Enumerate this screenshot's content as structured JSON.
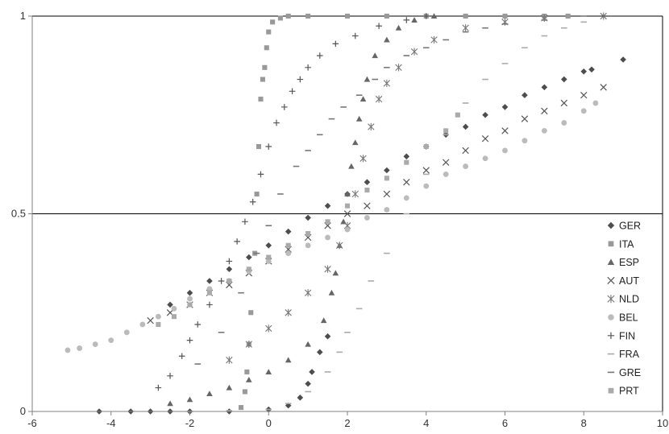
{
  "chart_data": {
    "type": "scatter",
    "title": "",
    "xlabel": "",
    "ylabel": "",
    "xlim": [
      -6,
      10
    ],
    "ylim": [
      0,
      1
    ],
    "x_ticks": [
      -6,
      -4,
      -2,
      0,
      2,
      4,
      6,
      8,
      10
    ],
    "x_tick_labels": [
      "-6",
      "-4",
      "-2",
      "0",
      "2",
      "4",
      "6",
      "8",
      "10"
    ],
    "y_ticks": [
      0,
      0.5,
      1
    ],
    "y_tick_labels": [
      "0",
      "0.5",
      "1"
    ],
    "horizontal_reference_lines": [
      0.5,
      1
    ],
    "legend_position": "right",
    "series": [
      {
        "name": "GER",
        "marker": "diamond",
        "color": "#4d4d4d",
        "points": [
          [
            -4.3,
            0.0
          ],
          [
            -3.5,
            0.0
          ],
          [
            -3.0,
            0.0
          ],
          [
            -2.5,
            0.0
          ],
          [
            -2.0,
            0.0
          ],
          [
            -1.0,
            0.0
          ],
          [
            0.0,
            0.005
          ],
          [
            0.5,
            0.015
          ],
          [
            0.8,
            0.035
          ],
          [
            1.0,
            0.07
          ],
          [
            1.1,
            0.1
          ],
          [
            1.3,
            0.15
          ],
          [
            1.5,
            0.19
          ],
          [
            -2.5,
            0.27
          ],
          [
            -2.0,
            0.3
          ],
          [
            -1.5,
            0.33
          ],
          [
            -1.0,
            0.36
          ],
          [
            -0.5,
            0.39
          ],
          [
            0.0,
            0.42
          ],
          [
            0.5,
            0.455
          ],
          [
            1.0,
            0.49
          ],
          [
            1.5,
            0.52
          ],
          [
            2.0,
            0.55
          ],
          [
            2.5,
            0.58
          ],
          [
            3.0,
            0.61
          ],
          [
            3.5,
            0.645
          ],
          [
            4.0,
            0.67
          ],
          [
            4.5,
            0.7
          ],
          [
            5.0,
            0.72
          ],
          [
            5.5,
            0.75
          ],
          [
            6.0,
            0.77
          ],
          [
            6.5,
            0.8
          ],
          [
            7.0,
            0.82
          ],
          [
            7.5,
            0.84
          ],
          [
            8.0,
            0.86
          ],
          [
            8.2,
            0.865
          ],
          [
            9.0,
            0.89
          ]
        ]
      },
      {
        "name": "ITA",
        "marker": "square",
        "color": "#999999",
        "points": [
          [
            -0.7,
            0.01
          ],
          [
            -0.6,
            0.05
          ],
          [
            -0.55,
            0.1
          ],
          [
            -0.5,
            0.17
          ],
          [
            -0.45,
            0.25
          ],
          [
            -0.35,
            0.4
          ],
          [
            -0.3,
            0.55
          ],
          [
            -0.25,
            0.67
          ],
          [
            -0.2,
            0.79
          ],
          [
            -0.15,
            0.84
          ],
          [
            -0.1,
            0.87
          ],
          [
            -0.05,
            0.92
          ],
          [
            0.0,
            0.96
          ],
          [
            0.1,
            0.985
          ],
          [
            0.3,
            0.995
          ],
          [
            0.5,
            1.0
          ],
          [
            1.0,
            1.0
          ],
          [
            2.0,
            1.0
          ],
          [
            3.0,
            1.0
          ],
          [
            4.0,
            1.0
          ],
          [
            5.0,
            1.0
          ],
          [
            6.0,
            1.0
          ],
          [
            7.0,
            1.0
          ],
          [
            7.6,
            1.0
          ]
        ]
      },
      {
        "name": "ESP",
        "marker": "triangle",
        "color": "#666666",
        "points": [
          [
            -2.5,
            0.02
          ],
          [
            -2.0,
            0.03
          ],
          [
            -1.5,
            0.045
          ],
          [
            -1.0,
            0.06
          ],
          [
            -0.5,
            0.08
          ],
          [
            0.0,
            0.1
          ],
          [
            0.5,
            0.13
          ],
          [
            1.0,
            0.17
          ],
          [
            1.4,
            0.23
          ],
          [
            1.6,
            0.3
          ],
          [
            1.7,
            0.35
          ],
          [
            1.8,
            0.42
          ],
          [
            1.9,
            0.48
          ],
          [
            2.0,
            0.55
          ],
          [
            2.1,
            0.62
          ],
          [
            2.2,
            0.68
          ],
          [
            2.3,
            0.74
          ],
          [
            2.4,
            0.79
          ],
          [
            2.5,
            0.84
          ],
          [
            2.7,
            0.9
          ],
          [
            3.0,
            0.94
          ],
          [
            3.3,
            0.97
          ],
          [
            3.7,
            0.99
          ],
          [
            4.2,
            1.0
          ]
        ]
      },
      {
        "name": "AUT",
        "marker": "x",
        "color": "#555555",
        "points": [
          [
            -3.0,
            0.23
          ],
          [
            -2.5,
            0.25
          ],
          [
            -2.0,
            0.27
          ],
          [
            -1.5,
            0.3
          ],
          [
            -1.0,
            0.32
          ],
          [
            -0.5,
            0.35
          ],
          [
            0.0,
            0.38
          ],
          [
            0.5,
            0.41
          ],
          [
            1.0,
            0.44
          ],
          [
            1.5,
            0.47
          ],
          [
            2.0,
            0.5
          ],
          [
            2.5,
            0.52
          ],
          [
            3.0,
            0.55
          ],
          [
            3.5,
            0.58
          ],
          [
            4.0,
            0.61
          ],
          [
            4.5,
            0.63
          ],
          [
            5.0,
            0.66
          ],
          [
            5.5,
            0.69
          ],
          [
            6.0,
            0.71
          ],
          [
            6.5,
            0.74
          ],
          [
            7.0,
            0.76
          ],
          [
            7.5,
            0.78
          ],
          [
            8.0,
            0.8
          ],
          [
            8.5,
            0.82
          ]
        ]
      },
      {
        "name": "NLD",
        "marker": "asterisk",
        "color": "#777777",
        "points": [
          [
            -1.0,
            0.13
          ],
          [
            -0.5,
            0.17
          ],
          [
            0.0,
            0.21
          ],
          [
            0.5,
            0.25
          ],
          [
            1.0,
            0.3
          ],
          [
            1.5,
            0.36
          ],
          [
            1.8,
            0.42
          ],
          [
            2.0,
            0.47
          ],
          [
            2.2,
            0.55
          ],
          [
            2.4,
            0.64
          ],
          [
            2.6,
            0.72
          ],
          [
            2.8,
            0.79
          ],
          [
            3.0,
            0.83
          ],
          [
            3.3,
            0.87
          ],
          [
            3.7,
            0.91
          ],
          [
            4.2,
            0.94
          ],
          [
            5.0,
            0.97
          ],
          [
            6.0,
            0.985
          ],
          [
            7.0,
            0.995
          ],
          [
            8.5,
            1.0
          ]
        ]
      },
      {
        "name": "BEL",
        "marker": "circle",
        "color": "#bbbbbb",
        "points": [
          [
            -5.1,
            0.155
          ],
          [
            -4.8,
            0.16
          ],
          [
            -4.4,
            0.17
          ],
          [
            -4.0,
            0.18
          ],
          [
            -3.6,
            0.2
          ],
          [
            -3.2,
            0.22
          ],
          [
            -2.8,
            0.24
          ],
          [
            -2.4,
            0.26
          ],
          [
            -2.0,
            0.285
          ],
          [
            -1.5,
            0.31
          ],
          [
            -1.0,
            0.33
          ],
          [
            -0.5,
            0.355
          ],
          [
            0.0,
            0.38
          ],
          [
            0.5,
            0.4
          ],
          [
            1.0,
            0.42
          ],
          [
            1.5,
            0.44
          ],
          [
            2.0,
            0.46
          ],
          [
            2.5,
            0.49
          ],
          [
            3.0,
            0.51
          ],
          [
            3.5,
            0.54
          ],
          [
            4.0,
            0.57
          ],
          [
            4.5,
            0.6
          ],
          [
            5.0,
            0.62
          ],
          [
            5.5,
            0.64
          ],
          [
            6.0,
            0.66
          ],
          [
            6.5,
            0.685
          ],
          [
            7.0,
            0.71
          ],
          [
            7.5,
            0.73
          ],
          [
            8.0,
            0.76
          ],
          [
            8.3,
            0.78
          ]
        ]
      },
      {
        "name": "FIN",
        "marker": "plus",
        "color": "#555555",
        "points": [
          [
            -2.8,
            0.06
          ],
          [
            -2.5,
            0.09
          ],
          [
            -2.2,
            0.14
          ],
          [
            -2.0,
            0.18
          ],
          [
            -1.8,
            0.22
          ],
          [
            -1.5,
            0.27
          ],
          [
            -1.2,
            0.33
          ],
          [
            -1.0,
            0.38
          ],
          [
            -0.8,
            0.43
          ],
          [
            -0.6,
            0.48
          ],
          [
            -0.4,
            0.53
          ],
          [
            -0.2,
            0.6
          ],
          [
            0.0,
            0.67
          ],
          [
            0.2,
            0.73
          ],
          [
            0.4,
            0.77
          ],
          [
            0.6,
            0.81
          ],
          [
            0.8,
            0.84
          ],
          [
            1.0,
            0.87
          ],
          [
            1.3,
            0.9
          ],
          [
            1.7,
            0.93
          ],
          [
            2.2,
            0.95
          ],
          [
            2.8,
            0.975
          ],
          [
            3.5,
            0.99
          ],
          [
            4.0,
            1.0
          ]
        ]
      },
      {
        "name": "FRA",
        "marker": "dash",
        "color": "#aaaaaa",
        "points": [
          [
            -2.0,
            0.0
          ],
          [
            -1.0,
            0.002
          ],
          [
            0.0,
            0.005
          ],
          [
            0.5,
            0.02
          ],
          [
            1.0,
            0.05
          ],
          [
            1.5,
            0.1
          ],
          [
            1.8,
            0.15
          ],
          [
            2.0,
            0.2
          ],
          [
            2.3,
            0.26
          ],
          [
            2.6,
            0.33
          ],
          [
            3.0,
            0.4
          ],
          [
            3.5,
            0.5
          ],
          [
            4.0,
            0.6
          ],
          [
            4.5,
            0.7
          ],
          [
            5.0,
            0.78
          ],
          [
            5.5,
            0.84
          ],
          [
            6.0,
            0.88
          ],
          [
            6.5,
            0.92
          ],
          [
            7.0,
            0.95
          ],
          [
            7.5,
            0.97
          ],
          [
            8.0,
            0.985
          ]
        ]
      },
      {
        "name": "GRE",
        "marker": "dash",
        "color": "#777777",
        "points": [
          [
            -1.8,
            0.12
          ],
          [
            -1.2,
            0.2
          ],
          [
            -0.7,
            0.3
          ],
          [
            -0.3,
            0.4
          ],
          [
            0.0,
            0.47
          ],
          [
            0.3,
            0.55
          ],
          [
            0.7,
            0.62
          ],
          [
            1.0,
            0.66
          ],
          [
            1.3,
            0.7
          ],
          [
            1.6,
            0.74
          ],
          [
            1.9,
            0.77
          ],
          [
            2.3,
            0.8
          ],
          [
            2.7,
            0.84
          ],
          [
            3.0,
            0.87
          ],
          [
            3.5,
            0.9
          ],
          [
            4.0,
            0.92
          ],
          [
            4.5,
            0.94
          ],
          [
            5.0,
            0.96
          ],
          [
            5.5,
            0.97
          ],
          [
            6.0,
            0.98
          ],
          [
            7.0,
            0.99
          ],
          [
            8.0,
            1.0
          ]
        ]
      },
      {
        "name": "PRT",
        "marker": "square",
        "color": "#aaaaaa",
        "points": [
          [
            -2.8,
            0.22
          ],
          [
            -2.4,
            0.24
          ],
          [
            -2.0,
            0.27
          ],
          [
            -1.5,
            0.3
          ],
          [
            -1.0,
            0.33
          ],
          [
            -0.5,
            0.36
          ],
          [
            0.0,
            0.39
          ],
          [
            0.5,
            0.42
          ],
          [
            1.0,
            0.45
          ],
          [
            1.5,
            0.48
          ],
          [
            2.0,
            0.52
          ],
          [
            2.5,
            0.56
          ],
          [
            3.0,
            0.59
          ],
          [
            3.5,
            0.63
          ],
          [
            4.0,
            0.67
          ],
          [
            4.5,
            0.71
          ],
          [
            4.8,
            0.75
          ]
        ]
      }
    ]
  }
}
